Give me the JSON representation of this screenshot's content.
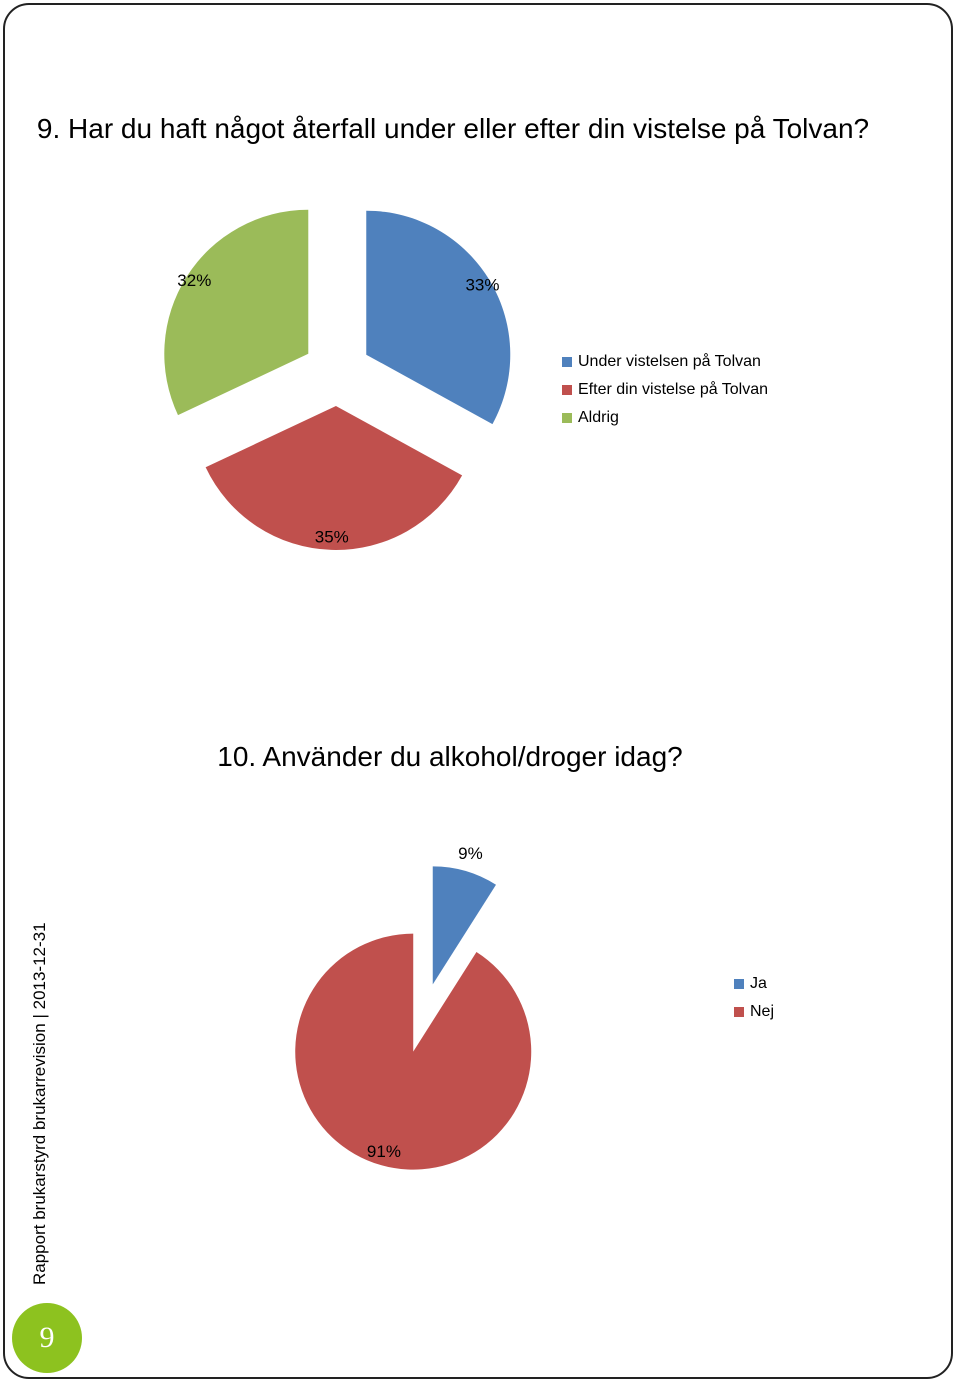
{
  "sidebar": {
    "report_label": "Rapport brukarstyrd brukarrevision",
    "separator": "|",
    "date": "2013-12-31",
    "page_number": "9"
  },
  "chart_data": [
    {
      "type": "pie",
      "title": "9. Har du haft något återfall under eller efter din vistelse på Tolvan?",
      "categories": [
        "Under vistelsen på Tolvan",
        "Efter din vistelse på Tolvan",
        "Aldrig"
      ],
      "values": [
        33,
        35,
        32
      ],
      "data_labels": [
        "33%",
        "35%",
        "32%"
      ],
      "colors": [
        "#4f81bd",
        "#c0504d",
        "#9bbb59"
      ],
      "exploded": true,
      "legend_position": "right"
    },
    {
      "type": "pie",
      "title": "10. Använder du alkohol/droger idag?",
      "categories": [
        "Ja",
        "Nej"
      ],
      "values": [
        9,
        91
      ],
      "data_labels": [
        "9%",
        "91%"
      ],
      "colors": [
        "#4f81bd",
        "#c0504d"
      ],
      "exploded": true,
      "legend_position": "right"
    }
  ]
}
